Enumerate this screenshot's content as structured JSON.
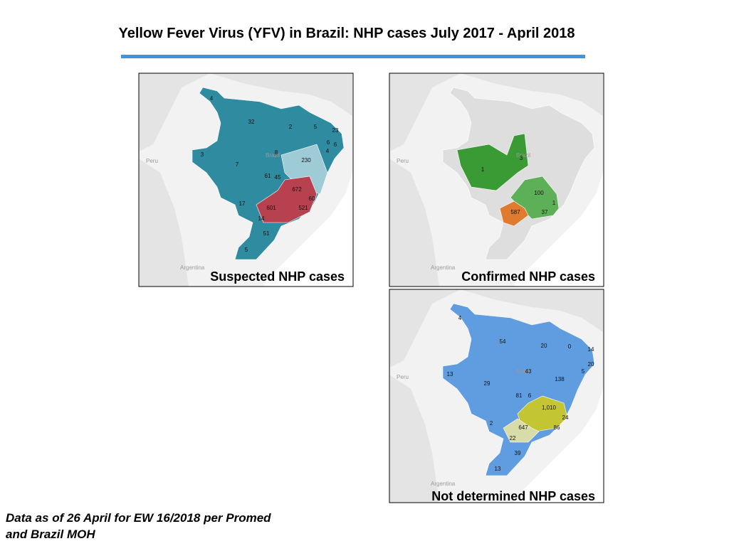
{
  "title": "Yellow Fever Virus (YFV) in Brazil: NHP cases July 2017 - April 2018",
  "places": [
    "Peru",
    "Brazil",
    "Argentina"
  ],
  "maps": [
    {
      "caption": "Suspected NHP cases",
      "labels": [
        "4",
        "32",
        "2",
        "5",
        "23",
        "6",
        "6",
        "4",
        "8",
        "230",
        "3",
        "7",
        "61",
        "45",
        "672",
        "60",
        "17",
        "601",
        "521",
        "14",
        "51",
        "5"
      ]
    },
    {
      "caption": "Confirmed NHP cases",
      "labels": [
        "1",
        "3",
        "100",
        "1",
        "37",
        "587"
      ]
    },
    {
      "caption": "Not determined NHP cases",
      "labels": [
        "4",
        "54",
        "20",
        "0",
        "14",
        "20",
        "5",
        "43",
        "13",
        "29",
        "138",
        "81",
        "6",
        "1,010",
        "24",
        "647",
        "86",
        "2",
        "22",
        "39",
        "13"
      ]
    }
  ],
  "footnote": [
    "Data as of 26 April for EW 16/2018 per Promed",
    "and Brazil MOH"
  ]
}
